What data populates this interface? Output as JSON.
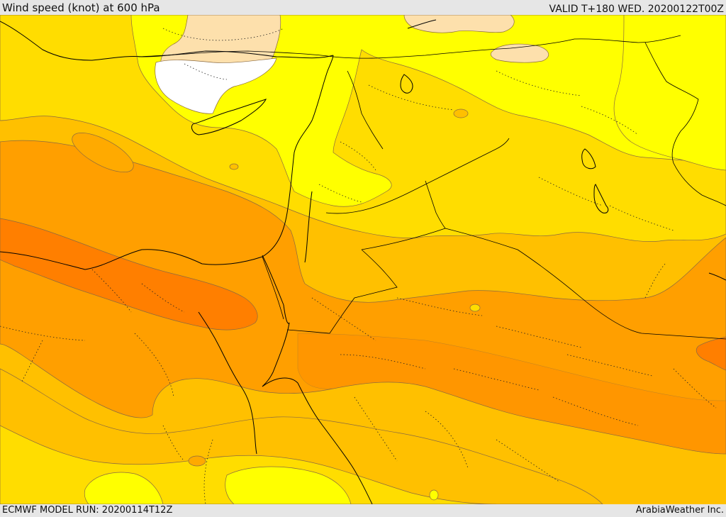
{
  "header": {
    "title": "Wind speed (knot) at 600 hPa",
    "valid": "VALID T+180 WED. 20200122T00Z"
  },
  "footer": {
    "model_run": "ECMWF MODEL RUN: 20200114T12Z",
    "credit": "ArabiaWeather Inc."
  },
  "palette": {
    "band_0_10": "#ffffff",
    "band_10_20": "#fde0ac",
    "band_20_30": "#ffff00",
    "band_30_40": "#ffdd00",
    "band_40_50": "#ffc000",
    "band_50_60": "#ff9f00",
    "band_60_70": "#ff7f00"
  }
}
